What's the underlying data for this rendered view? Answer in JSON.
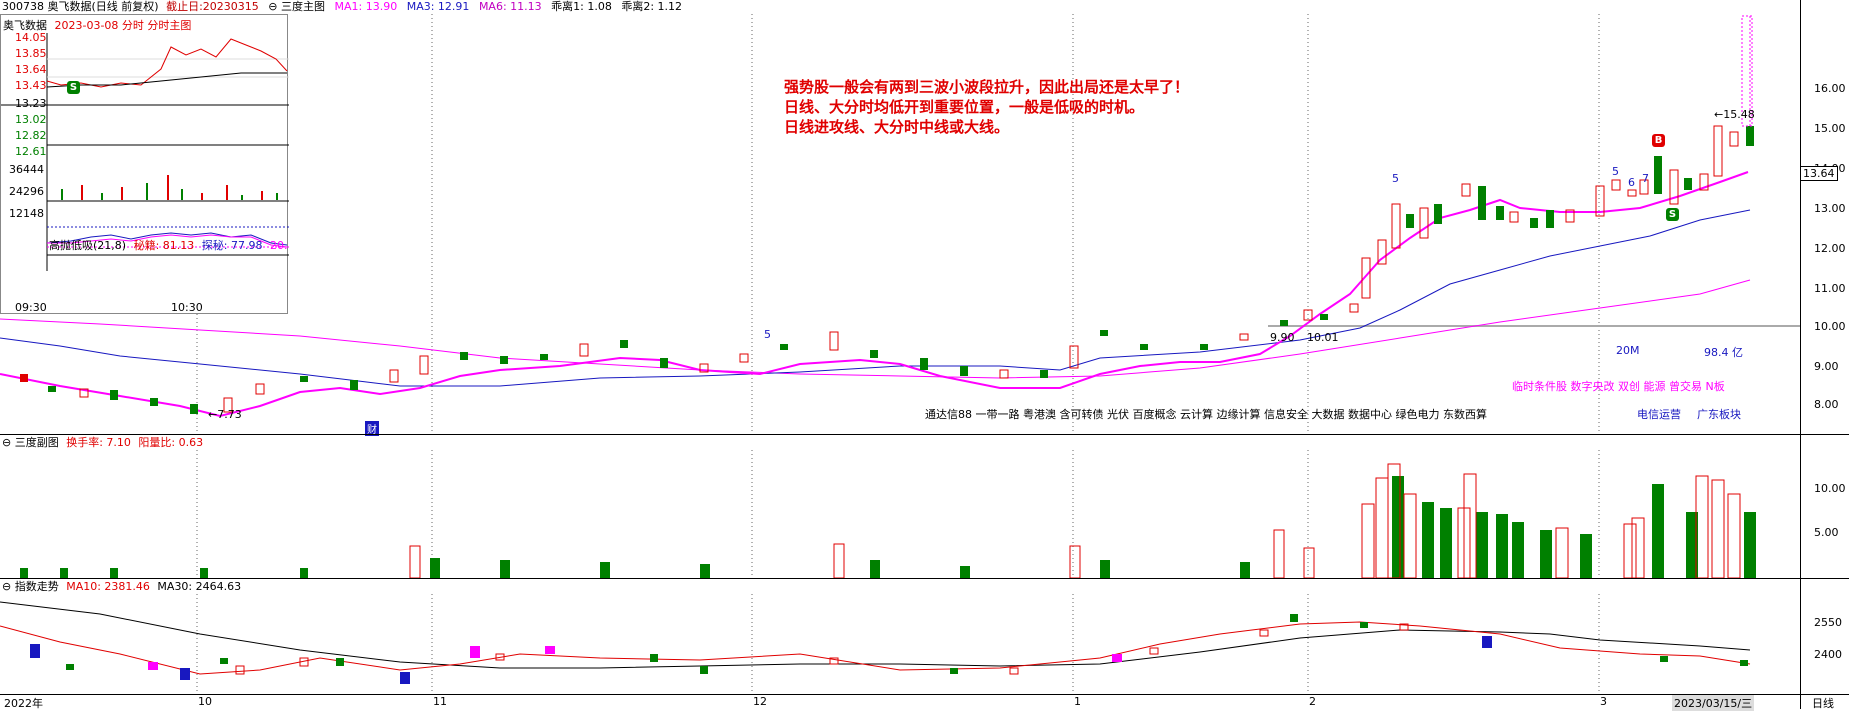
{
  "header": {
    "code_name": "300738 奥飞数据(日线 前复权)",
    "deadline": "截止日:20230315",
    "main_label": "三度主图",
    "ma1": "MA1: 13.90",
    "ma3": "MA3: 12.91",
    "ma6": "MA6: 11.13",
    "dev1": "乖离1: 1.08",
    "dev2": "乖离2: 1.12"
  },
  "inset": {
    "title": "奥飞数据",
    "subtitle": "2023-03-08 分时 分时主图",
    "price_ticks": [
      "14.05",
      "13.85",
      "13.64",
      "13.43",
      "13.23",
      "13.02",
      "12.82",
      "12.61"
    ],
    "vol_ticks": [
      "36444",
      "24296",
      "12148"
    ],
    "indicator_name": "高抛低吸(21,8)",
    "indicator_v1": "秘籍: 81.13",
    "indicator_v2": "探秘: 77.98",
    "indicator_v3": "20.",
    "time_start": "09:30",
    "time_mid": "10:30"
  },
  "note": {
    "line1": "强势股一般会有两到三波小波段拉升，因此出局还是太早了！",
    "line2": "日线、大分时均低开到重要位置，一般是低吸的时机。",
    "line3": "日线进攻线、大分时中线或大线。"
  },
  "main_axis": [
    "16.00",
    "15.00",
    "14.00",
    "13.00",
    "12.00",
    "11.00",
    "10.00",
    "9.00",
    "8.00"
  ],
  "current_price": "13.64",
  "annotations": {
    "low": "←7.73",
    "high": "←15.48",
    "p990": "9.90",
    "p1001": "10.01",
    "vol20m": "20M",
    "cap": "98.4 亿",
    "wave5a": "5",
    "wave5b": "5",
    "wave5c": "5",
    "wave6": "6",
    "wave7": "7",
    "cai": "财",
    "markB": "B",
    "markS": "S",
    "markS2": "S"
  },
  "concepts": {
    "line1": "通达信88 一带一路 粤港澳 含可转债 光伏 百度概念 云计算 边缘计算 信息安全 大数据 数据中心 绿色电力 东数西算",
    "right1": "临时条件股 数字央改 双创 能源 曾交易 N板",
    "right2a": "电信运营",
    "right2b": "广东板块"
  },
  "sub1": {
    "title": "三度副图",
    "turnover": "换手率: 7.10",
    "ratio": "阳量比: 0.63",
    "axis": [
      "10.00",
      "5.00"
    ]
  },
  "sub2": {
    "title": "指数走势",
    "ma10": "MA10: 2381.46",
    "ma30": "MA30: 2464.63",
    "axis": [
      "2550",
      "2400"
    ]
  },
  "xaxis": {
    "y2022": "2022年",
    "m10": "10",
    "m11": "11",
    "m12": "12",
    "m1": "1",
    "m2": "2",
    "m3": "3",
    "date": "2023/03/15/三",
    "period": "日线"
  },
  "colors": {
    "up": "#e00000",
    "down": "#008000",
    "ma_magenta": "#ff00ff",
    "ma_blue": "#1818c0",
    "note_red": "#e00000"
  }
}
